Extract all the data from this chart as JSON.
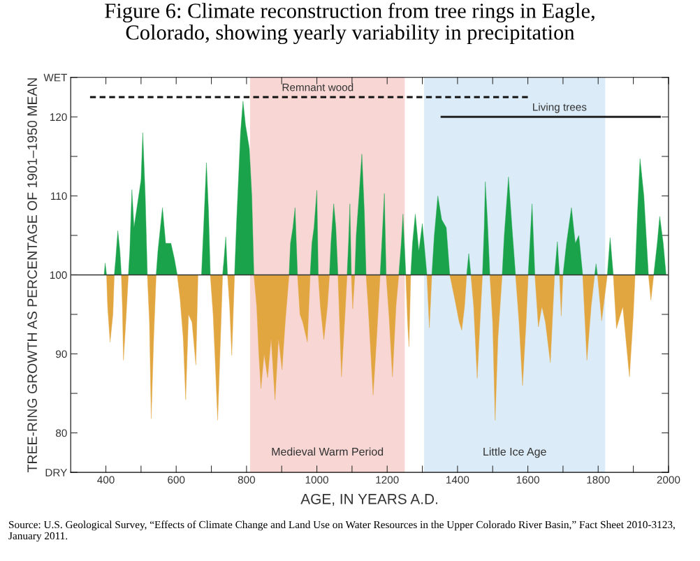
{
  "chart_data": {
    "type": "area",
    "title": "Figure 6: Climate reconstruction from tree rings in Eagle,\nColorado, showing yearly variability in precipitation",
    "xlabel": "AGE, IN YEARS A.D.",
    "ylabel": "TREE-RING GROWTH AS PERCENTAGE OF 1901–1950 MEAN",
    "xlim": [
      300,
      2000
    ],
    "xticks": [
      400,
      {
        "value": 500,
        "label": null
      },
      600,
      {
        "value": 700,
        "label": null
      },
      800,
      {
        "value": 900,
        "label": null
      },
      1000,
      {
        "value": 1100,
        "label": null
      },
      1200,
      {
        "value": 1300,
        "label": null
      },
      1400,
      {
        "value": 1500,
        "label": null
      },
      1600,
      {
        "value": 1700,
        "label": null
      },
      1800,
      {
        "value": 1900,
        "label": null
      },
      2000
    ],
    "ylim": [
      75,
      125
    ],
    "yticks": [
      {
        "value": 75,
        "label": "DRY"
      },
      80,
      {
        "value": 85,
        "label": null
      },
      90,
      {
        "value": 95,
        "label": null
      },
      100,
      {
        "value": 105,
        "label": null
      },
      110,
      {
        "value": 115,
        "label": null
      },
      120,
      {
        "value": 125,
        "label": "WET"
      }
    ],
    "grid": false,
    "legend": false,
    "bands": [
      {
        "axis": "x",
        "from": 810,
        "to": 1250,
        "label": "Medieval Warm Period",
        "color": "#f7d6d3"
      },
      {
        "axis": "x",
        "from": 1305,
        "to": 1820,
        "label": "Little Ice Age",
        "color": "#dbecf8"
      }
    ],
    "ref_lines": [
      {
        "axis": "y",
        "value": 100,
        "color": "#333333"
      }
    ],
    "series": [
      {
        "color": "#1ba34c",
        "x": [
          395,
          398,
          402,
          424,
          428,
          434,
          440,
          444,
          464,
          468,
          474,
          480,
          490,
          500,
          505,
          512,
          518,
          543,
          548,
          555,
          561,
          570,
          585,
          595,
          603,
          662,
          672,
          678,
          686,
          692,
          697,
          732,
          736,
          741,
          746,
          766,
          772,
          783,
          790,
          797,
          808,
          815,
          821,
          921,
          925,
          932,
          938,
          945,
          981,
          986,
          992,
          1000,
          1004,
          1036,
          1040,
          1048,
          1054,
          1060,
          1086,
          1090,
          1094,
          1098,
          1108,
          1112,
          1120,
          1128,
          1135,
          1140,
          1180,
          1186,
          1192,
          1197,
          1233,
          1240,
          1245,
          1253,
          1267,
          1272,
          1280,
          1290,
          1300,
          1313,
          1327,
          1334,
          1344,
          1355,
          1368,
          1378,
          1426,
          1432,
          1438,
          1471,
          1476,
          1479,
          1485,
          1492,
          1527,
          1533,
          1545,
          1555,
          1565,
          1601,
          1606,
          1612,
          1620,
          1676,
          1684,
          1690,
          1700,
          1710,
          1724,
          1735,
          1745,
          1756,
          1790,
          1794,
          1798,
          1826,
          1834,
          1843,
          1905,
          1912,
          1919,
          1930,
          1943,
          1958,
          1968,
          1975,
          1985,
          1993
        ],
        "values": [
          100,
          101.5,
          100,
          100,
          102,
          105.6,
          103,
          100,
          100,
          103,
          110.8,
          106,
          109,
          112,
          118,
          110,
          100,
          100,
          103,
          106,
          108.5,
          104,
          104,
          102,
          100,
          100,
          100,
          106,
          114.2,
          108,
          100,
          100,
          102,
          104.8,
          100,
          100,
          107,
          118,
          122,
          119,
          116,
          110,
          100,
          100,
          104,
          106,
          108.5,
          100,
          100,
          104,
          106,
          110.7,
          100,
          100,
          104,
          109,
          106,
          100,
          100,
          104,
          109,
          100,
          100,
          105,
          110,
          115.3,
          108,
          100,
          100,
          105,
          110.3,
          100,
          100,
          104,
          107.7,
          100,
          100,
          104,
          107.7,
          103,
          106.5,
          100,
          100,
          105,
          110,
          107,
          106,
          100,
          100,
          102.7,
          100,
          100,
          106,
          111.8,
          107,
          100,
          100,
          105,
          112.4,
          106,
          100,
          100,
          104,
          109,
          100,
          100,
          104.2,
          100,
          100,
          104,
          108.5,
          104,
          105,
          100,
          100,
          101.4,
          100,
          100,
          104.7,
          100,
          100,
          108,
          114.7,
          110,
          100,
          100,
          104,
          107.4,
          104,
          100
        ]
      },
      {
        "color": "#e2a640",
        "x": [
          402,
          405,
          412,
          420,
          424,
          444,
          447,
          450,
          458,
          464,
          518,
          524,
          529,
          536,
          543,
          603,
          611,
          620,
          627,
          635,
          645,
          656,
          662,
          697,
          705,
          711,
          718,
          726,
          732,
          746,
          752,
          758,
          766,
          821,
          829,
          835,
          841,
          850,
          860,
          870,
          881,
          891,
          901,
          910,
          921,
          945,
          952,
          960,
          973,
          981,
          1004,
          1010,
          1020,
          1030,
          1036,
          1060,
          1064,
          1070,
          1080,
          1086,
          1098,
          1102,
          1108,
          1140,
          1146,
          1160,
          1170,
          1180,
          1197,
          1205,
          1215,
          1225,
          1233,
          1253,
          1258,
          1262,
          1267,
          1313,
          1320,
          1327,
          1378,
          1392,
          1405,
          1412,
          1420,
          1426,
          1438,
          1446,
          1456,
          1465,
          1471,
          1492,
          1500,
          1507,
          1515,
          1527,
          1565,
          1575,
          1585,
          1595,
          1601,
          1620,
          1630,
          1640,
          1650,
          1664,
          1676,
          1690,
          1695,
          1700,
          1756,
          1768,
          1780,
          1790,
          1798,
          1810,
          1826,
          1843,
          1852,
          1870,
          1889,
          1900,
          1905,
          1943,
          1950,
          1958
        ],
        "values": [
          100,
          96,
          91.5,
          95,
          100,
          100,
          96,
          89.2,
          95,
          100,
          100,
          94,
          81.8,
          92,
          100,
          100,
          97,
          92,
          84.2,
          95,
          94,
          88.6,
          100,
          100,
          95,
          89,
          81.6,
          92,
          100,
          100,
          96,
          89.8,
          100,
          100,
          96,
          90,
          85.6,
          90,
          87,
          92,
          84.2,
          92,
          88,
          94,
          100,
          100,
          95,
          94,
          91.5,
          100,
          100,
          96,
          91.8,
          96,
          100,
          100,
          95,
          87.1,
          95,
          100,
          100,
          95.7,
          100,
          100,
          96,
          84.8,
          92,
          100,
          100,
          95,
          87.1,
          96,
          100,
          100,
          94,
          90.9,
          100,
          100,
          93.3,
          100,
          100,
          97,
          94,
          93,
          96,
          100,
          100,
          96,
          86.9,
          95,
          100,
          100,
          94,
          81.6,
          92,
          100,
          100,
          94,
          86,
          94,
          100,
          100,
          93.4,
          96,
          94,
          88.9,
          100,
          100,
          94.8,
          100,
          100,
          89.2,
          96,
          100,
          100,
          94.2,
          100,
          100,
          93.2,
          96,
          87.1,
          95,
          100,
          100,
          96.8,
          100
        ]
      },
      {
        "type": "line",
        "name": "Remnant wood",
        "color": "#111111",
        "line_style": "dashed",
        "x": [
          355,
          1600
        ],
        "values": [
          122.5,
          122.5
        ]
      },
      {
        "type": "line",
        "name": "Living trees",
        "color": "#222222",
        "line_style": "solid",
        "x": [
          1355,
          1975
        ],
        "values": [
          120,
          120
        ]
      }
    ],
    "annotations": [
      "Source: U.S. Geological Survey, “Effects of Climate Change and Land Use on Water Resources in the Upper Colorado River Basin,” Fact Sheet 2010-3123, January 2011."
    ]
  }
}
